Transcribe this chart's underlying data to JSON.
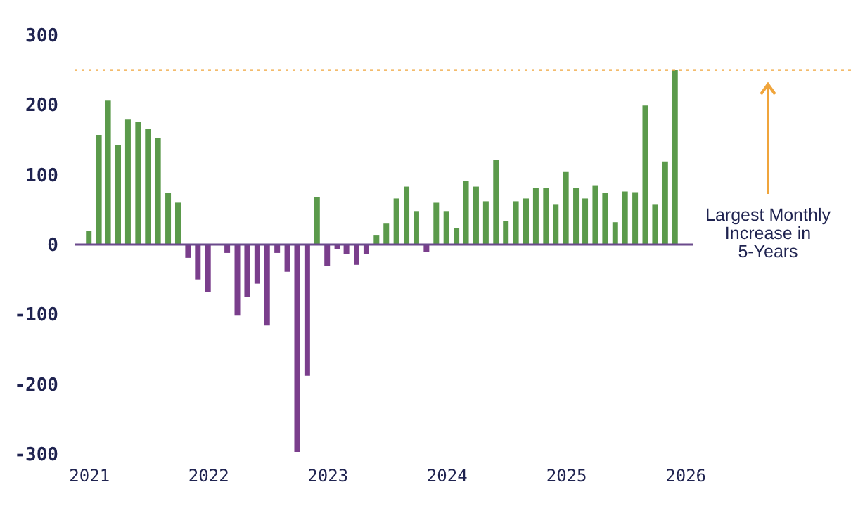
{
  "chart_data": {
    "type": "bar",
    "x": [
      "2021-01",
      "2021-02",
      "2021-03",
      "2021-04",
      "2021-05",
      "2021-06",
      "2021-07",
      "2021-08",
      "2021-09",
      "2021-10",
      "2021-11",
      "2021-12",
      "2022-01",
      "2022-02",
      "2022-03",
      "2022-04",
      "2022-05",
      "2022-06",
      "2022-07",
      "2022-08",
      "2022-09",
      "2022-10",
      "2022-11",
      "2022-12",
      "2023-01",
      "2023-02",
      "2023-03",
      "2023-04",
      "2023-05",
      "2023-06",
      "2023-07",
      "2023-08",
      "2023-09",
      "2023-10",
      "2023-11",
      "2023-12",
      "2024-01",
      "2024-02",
      "2024-03",
      "2024-04",
      "2024-05",
      "2024-06",
      "2024-07",
      "2024-08",
      "2024-09",
      "2024-10",
      "2024-11",
      "2024-12",
      "2025-01",
      "2025-02",
      "2025-03",
      "2025-04",
      "2025-05",
      "2025-06",
      "2025-07",
      "2025-08",
      "2025-09",
      "2025-10",
      "2025-11",
      "2025-12"
    ],
    "values": [
      20,
      157,
      206,
      142,
      179,
      176,
      165,
      152,
      74,
      60,
      -19,
      -50,
      -68,
      0,
      -12,
      -101,
      -75,
      -56,
      -116,
      -12,
      -39,
      -297,
      -188,
      68,
      -31,
      -7,
      -14,
      -29,
      -14,
      13,
      30,
      66,
      83,
      48,
      -11,
      60,
      48,
      24,
      91,
      83,
      62,
      121,
      34,
      62,
      66,
      81,
      81,
      58,
      104,
      81,
      66,
      85,
      74,
      32,
      76,
      75,
      199,
      58,
      119,
      250
    ],
    "colors": [
      "#5b9a4b",
      "#5b9a4b",
      "#5b9a4b",
      "#5b9a4b",
      "#5b9a4b",
      "#5b9a4b",
      "#5b9a4b",
      "#5b9a4b",
      "#5b9a4b",
      "#5b9a4b",
      "#7a3e8c",
      "#7a3e8c",
      "#7a3e8c",
      "#7a3e8c",
      "#7a3e8c",
      "#7a3e8c",
      "#7a3e8c",
      "#7a3e8c",
      "#7a3e8c",
      "#7a3e8c",
      "#7a3e8c",
      "#7a3e8c",
      "#7a3e8c",
      "#5b9a4b",
      "#7a3e8c",
      "#7a3e8c",
      "#7a3e8c",
      "#7a3e8c",
      "#7a3e8c",
      "#5b9a4b",
      "#5b9a4b",
      "#5b9a4b",
      "#5b9a4b",
      "#5b9a4b",
      "#7a3e8c",
      "#5b9a4b",
      "#5b9a4b",
      "#5b9a4b",
      "#5b9a4b",
      "#5b9a4b",
      "#5b9a4b",
      "#5b9a4b",
      "#5b9a4b",
      "#5b9a4b",
      "#5b9a4b",
      "#5b9a4b",
      "#5b9a4b",
      "#5b9a4b",
      "#5b9a4b",
      "#5b9a4b",
      "#5b9a4b",
      "#5b9a4b",
      "#5b9a4b",
      "#5b9a4b",
      "#5b9a4b",
      "#5b9a4b",
      "#5b9a4b",
      "#5b9a4b",
      "#5b9a4b",
      "#5b9a4b"
    ],
    "xlim": [
      "2020-12-10",
      "2026-01-05"
    ],
    "xticks": [
      "2021",
      "2022",
      "2023",
      "2024",
      "2025",
      "2026"
    ],
    "ylim": [
      -300,
      300
    ],
    "yticks": [
      -300,
      -200,
      -100,
      0,
      100,
      200,
      300
    ],
    "ref_lines": [
      {
        "axis": "y",
        "value": 0,
        "color": "#6b4a8c",
        "line_style": "solid"
      },
      {
        "axis": "y",
        "value": 250,
        "color": "#f0a53c",
        "line_style": "dotted"
      }
    ],
    "annotations": [
      "Largest Monthly Increase in 5-Years"
    ],
    "grid": false,
    "legend": false
  }
}
